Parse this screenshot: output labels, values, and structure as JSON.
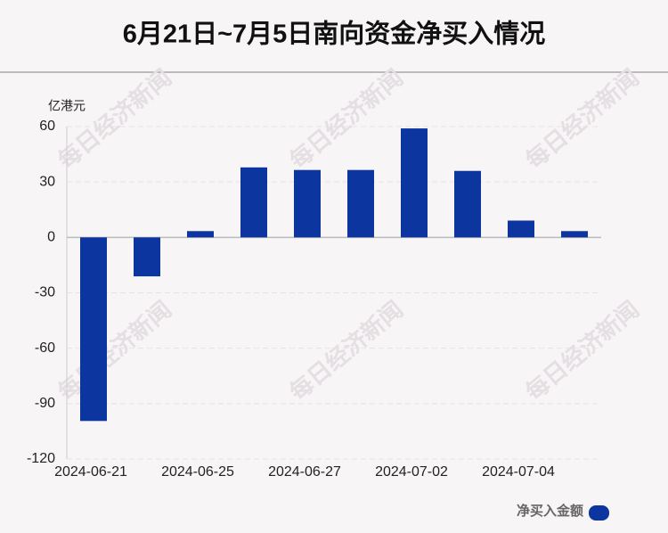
{
  "chart_data": {
    "type": "bar",
    "title": "6月21日~7月5日南向资金净买入情况",
    "y_axis_label": "亿港元",
    "watermark": "每日经济新闻",
    "categories": [
      "2024-06-21",
      null,
      "2024-06-25",
      null,
      "2024-06-27",
      null,
      "2024-07-02",
      null,
      "2024-07-04",
      null
    ],
    "series": [
      {
        "name": "净买入金额",
        "color": "#0d35a0",
        "values": [
          -99.4,
          -21.1,
          3.4,
          37.9,
          36.5,
          36.5,
          59.0,
          36.0,
          9.1,
          3.4
        ]
      }
    ],
    "ylim": [
      -120,
      60
    ],
    "yticks": [
      -120,
      -90,
      -60,
      -30,
      0,
      30,
      60
    ],
    "grid": true
  }
}
